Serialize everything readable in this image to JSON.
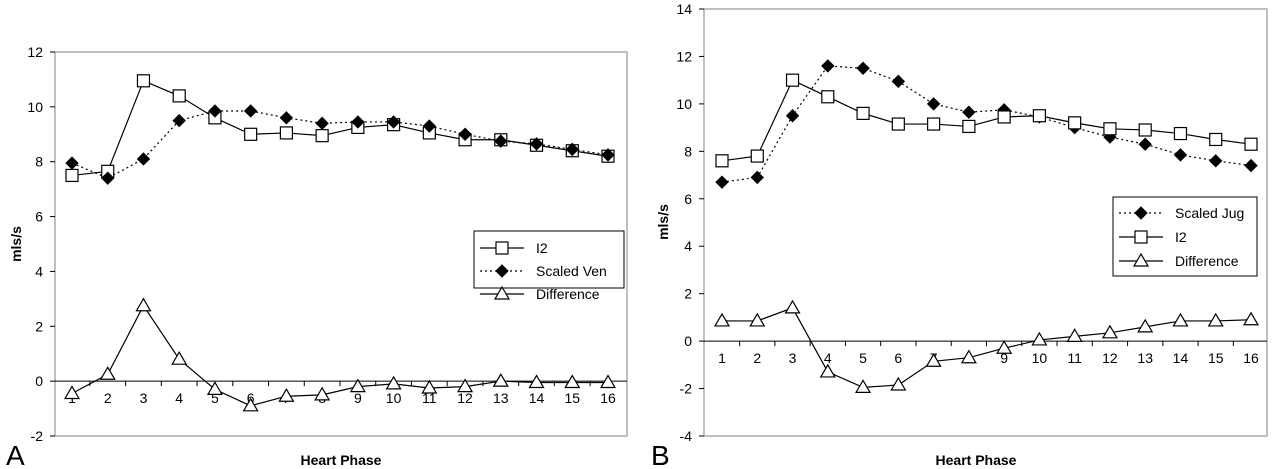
{
  "chart_data": [
    {
      "type": "line",
      "panel_label": "A",
      "xlabel": "Heart Phase",
      "ylabel": "mls/s",
      "x": [
        1,
        2,
        3,
        4,
        5,
        6,
        7,
        8,
        9,
        10,
        11,
        12,
        13,
        14,
        15,
        16
      ],
      "ylim": [
        -2,
        12
      ],
      "yticks": [
        -2,
        0,
        2,
        4,
        6,
        8,
        10,
        12
      ],
      "grid": false,
      "legend_position": "right",
      "series": [
        {
          "name": "I2",
          "marker": "square",
          "style": "solid",
          "values": [
            7.5,
            7.65,
            10.95,
            10.4,
            9.6,
            9.0,
            9.05,
            8.95,
            9.25,
            9.35,
            9.05,
            8.8,
            8.8,
            8.6,
            8.4,
            8.2
          ]
        },
        {
          "name": "Scaled Ven",
          "marker": "diamond",
          "style": "dotted",
          "values": [
            7.95,
            7.4,
            8.1,
            9.5,
            9.85,
            9.85,
            9.6,
            9.4,
            9.45,
            9.45,
            9.3,
            9.0,
            8.75,
            8.65,
            8.45,
            8.25
          ]
        },
        {
          "name": "Difference",
          "marker": "triangle",
          "style": "solid",
          "values": [
            -0.45,
            0.25,
            2.75,
            0.8,
            -0.3,
            -0.9,
            -0.55,
            -0.5,
            -0.2,
            -0.1,
            -0.25,
            -0.2,
            0.0,
            -0.05,
            -0.05,
            -0.05
          ]
        }
      ]
    },
    {
      "type": "line",
      "panel_label": "B",
      "xlabel": "Heart Phase",
      "ylabel": "mls/s",
      "x": [
        1,
        2,
        3,
        4,
        5,
        6,
        7,
        8,
        9,
        10,
        11,
        12,
        13,
        14,
        15,
        16
      ],
      "ylim": [
        -4,
        14
      ],
      "yticks": [
        -4,
        -2,
        0,
        2,
        4,
        6,
        8,
        10,
        12,
        14
      ],
      "grid": false,
      "legend_position": "right",
      "series": [
        {
          "name": "Scaled Jug",
          "marker": "diamond",
          "style": "dotted",
          "values": [
            6.7,
            6.9,
            9.5,
            11.6,
            11.5,
            10.95,
            10.0,
            9.65,
            9.75,
            9.45,
            9.0,
            8.6,
            8.3,
            7.85,
            7.6,
            7.4
          ]
        },
        {
          "name": "I2",
          "marker": "square",
          "style": "solid",
          "values": [
            7.6,
            7.8,
            11.0,
            10.3,
            9.6,
            9.15,
            9.15,
            9.05,
            9.45,
            9.5,
            9.2,
            8.95,
            8.9,
            8.75,
            8.5,
            8.3
          ]
        },
        {
          "name": "Difference",
          "marker": "triangle",
          "style": "solid",
          "values": [
            0.85,
            0.85,
            1.4,
            -1.3,
            -1.95,
            -1.85,
            -0.85,
            -0.7,
            -0.3,
            0.05,
            0.2,
            0.35,
            0.6,
            0.85,
            0.85,
            0.9
          ]
        }
      ]
    }
  ]
}
